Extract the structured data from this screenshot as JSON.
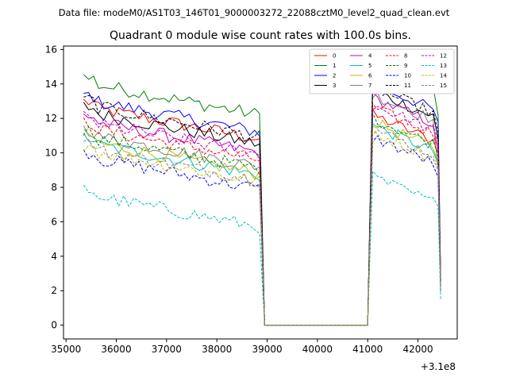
{
  "header": "Data file: modeM0/AS1T03_146T01_9000003272_22088cztM0_level2_quad_clean.evt",
  "chart_data": {
    "type": "line",
    "title": "Quadrant 0 module wise count rates with 100.0s bins.",
    "xlabel": "",
    "ylabel": "",
    "x_offset_label": "+3.1e8",
    "xlim": [
      34950,
      42780
    ],
    "ylim": [
      -0.8,
      16.2
    ],
    "xticks": [
      35000,
      36000,
      37000,
      38000,
      39000,
      40000,
      41000,
      42000
    ],
    "xtick_labels": [
      "35000",
      "36000",
      "37000",
      "38000",
      "39000",
      "40000",
      "41000",
      "42000"
    ],
    "yticks": [
      0,
      2,
      4,
      6,
      8,
      10,
      12,
      14,
      16
    ],
    "ytick_labels": [
      "0",
      "2",
      "4",
      "6",
      "8",
      "10",
      "12",
      "14",
      "16"
    ],
    "legend_position": "top-right",
    "segments": {
      "seg1_start": 35350,
      "seg1_end": 38850,
      "drop_x": 38950,
      "seg2_start": 41050,
      "seg2_end": 42450,
      "bin": 100
    },
    "series": [
      {
        "name": "0",
        "color": "#ff0000",
        "dash": "solid",
        "level1": 11.8,
        "level2": 11.6,
        "end": 10.0
      },
      {
        "name": "1",
        "color": "#008000",
        "dash": "solid",
        "level1": 13.2,
        "level2": 14.6,
        "end": 12.2
      },
      {
        "name": "2",
        "color": "#0000ff",
        "dash": "solid",
        "level1": 12.2,
        "level2": 13.4,
        "end": 11.8
      },
      {
        "name": "3",
        "color": "#000000",
        "dash": "solid",
        "level1": 11.5,
        "level2": 13.0,
        "end": 10.8
      },
      {
        "name": "4",
        "color": "#bf00bf",
        "dash": "solid",
        "level1": 11.0,
        "level2": 12.6,
        "end": 10.2
      },
      {
        "name": "5",
        "color": "#00bfbf",
        "dash": "solid",
        "level1": 9.7,
        "level2": 11.0,
        "end": 9.4
      },
      {
        "name": "6",
        "color": "#bfbf00",
        "dash": "solid",
        "level1": 9.8,
        "level2": 11.2,
        "end": 9.5
      },
      {
        "name": "7",
        "color": "#808080",
        "dash": "solid",
        "level1": 10.2,
        "level2": 12.8,
        "end": 9.0
      },
      {
        "name": "8",
        "color": "#ff0000",
        "dash": "dashed",
        "level1": 10.6,
        "level2": 12.0,
        "end": 10.4
      },
      {
        "name": "9",
        "color": "#008000",
        "dash": "dashed",
        "level1": 10.1,
        "level2": 11.4,
        "end": 9.8
      },
      {
        "name": "10",
        "color": "#0000ff",
        "dash": "dashed",
        "level1": 8.9,
        "level2": 10.3,
        "end": 8.6
      },
      {
        "name": "11",
        "color": "#000000",
        "dash": "dashed",
        "level1": 11.9,
        "level2": 13.2,
        "end": 11.2
      },
      {
        "name": "12",
        "color": "#bf00bf",
        "dash": "dashed",
        "level1": 10.9,
        "level2": 12.2,
        "end": 10.6
      },
      {
        "name": "13",
        "color": "#00bfbf",
        "dash": "dashed",
        "level1": 6.7,
        "level2": 8.0,
        "end": 6.9
      },
      {
        "name": "14",
        "color": "#bfbf00",
        "dash": "dashed",
        "level1": 9.3,
        "level2": 10.6,
        "end": 9.2
      },
      {
        "name": "15",
        "color": "#808080",
        "dash": "dashed",
        "level1": 9.4,
        "level2": 10.8,
        "end": 9.0
      }
    ]
  }
}
